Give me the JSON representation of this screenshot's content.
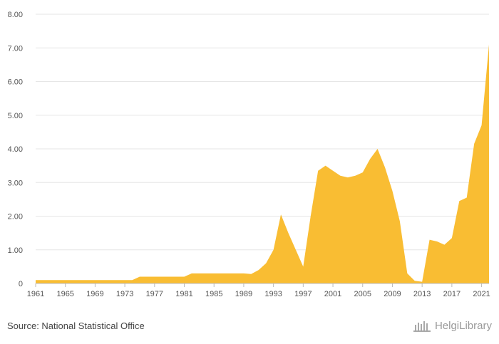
{
  "chart_data": {
    "type": "area",
    "ylim": [
      0,
      8
    ],
    "y_ticks": [
      "0",
      "1.00",
      "2.00",
      "3.00",
      "4.00",
      "5.00",
      "6.00",
      "7.00",
      "8.00"
    ],
    "x_ticks": [
      "1961",
      "1965",
      "1969",
      "1973",
      "1977",
      "1981",
      "1985",
      "1989",
      "1993",
      "1997",
      "2001",
      "2005",
      "2009",
      "2013",
      "2017",
      "2021"
    ],
    "grid": true,
    "color": "#f9bd33",
    "x": [
      1961,
      1962,
      1963,
      1964,
      1965,
      1966,
      1967,
      1968,
      1969,
      1970,
      1971,
      1972,
      1973,
      1974,
      1975,
      1976,
      1977,
      1978,
      1979,
      1980,
      1981,
      1982,
      1983,
      1984,
      1985,
      1986,
      1987,
      1988,
      1989,
      1990,
      1991,
      1992,
      1993,
      1994,
      1995,
      1996,
      1997,
      1998,
      1999,
      2000,
      2001,
      2002,
      2003,
      2004,
      2005,
      2006,
      2007,
      2008,
      2009,
      2010,
      2011,
      2012,
      2013,
      2014,
      2015,
      2016,
      2017,
      2018,
      2019,
      2020,
      2021,
      2022
    ],
    "values": [
      0.1,
      0.1,
      0.1,
      0.1,
      0.1,
      0.1,
      0.1,
      0.1,
      0.1,
      0.1,
      0.1,
      0.1,
      0.1,
      0.1,
      0.2,
      0.2,
      0.2,
      0.2,
      0.2,
      0.2,
      0.2,
      0.3,
      0.3,
      0.3,
      0.3,
      0.3,
      0.3,
      0.3,
      0.3,
      0.28,
      0.4,
      0.6,
      1.0,
      2.05,
      1.5,
      1.0,
      0.5,
      2.0,
      3.35,
      3.5,
      3.35,
      3.2,
      3.15,
      3.2,
      3.3,
      3.7,
      4.0,
      3.45,
      2.75,
      1.85,
      0.3,
      0.08,
      0.05,
      1.3,
      1.25,
      1.15,
      1.35,
      2.45,
      2.55,
      4.15,
      4.7,
      7.1
    ]
  },
  "footer": {
    "source": "Source: National Statistical Office",
    "brand": "HelgiLibrary"
  }
}
